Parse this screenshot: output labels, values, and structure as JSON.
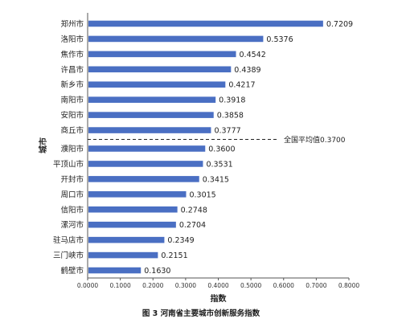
{
  "chart_data": {
    "type": "bar",
    "orientation": "horizontal",
    "categories": [
      "郑州市",
      "洛阳市",
      "焦作市",
      "许昌市",
      "新乡市",
      "南阳市",
      "安阳市",
      "商丘市",
      "濮阳市",
      "平顶山市",
      "开封市",
      "周口市",
      "信阳市",
      "漯河市",
      "驻马店市",
      "三门峡市",
      "鹤壁市"
    ],
    "values": [
      0.7209,
      0.5376,
      0.4542,
      0.4389,
      0.4217,
      0.3918,
      0.3858,
      0.3777,
      0.36,
      0.3531,
      0.3415,
      0.3015,
      0.2748,
      0.2704,
      0.2349,
      0.2151,
      0.163
    ],
    "value_labels": [
      "0.7209",
      "0.5376",
      "0.4542",
      "0.4389",
      "0.4217",
      "0.3918",
      "0.3858",
      "0.3777",
      "0.3600",
      "0.3531",
      "0.3415",
      "0.3015",
      "0.2748",
      "0.2704",
      "0.2349",
      "0.2151",
      "0.1630"
    ],
    "xlabel": "指数",
    "ylabel": "城市",
    "xlim": [
      0,
      0.8
    ],
    "x_ticks": [
      "0.0000",
      "0.1000",
      "0.2000",
      "0.3000",
      "0.4000",
      "0.5000",
      "0.6000",
      "0.7000",
      "0.8000"
    ],
    "reference_line": {
      "value": 0.37,
      "label": "全国平均值0.3700",
      "between": [
        "商丘市",
        "濮阳市"
      ]
    },
    "bar_color": "#4a6fc3",
    "grid": false,
    "legend": "none"
  },
  "caption": "图 3  河南省主要城市创新服务指数"
}
